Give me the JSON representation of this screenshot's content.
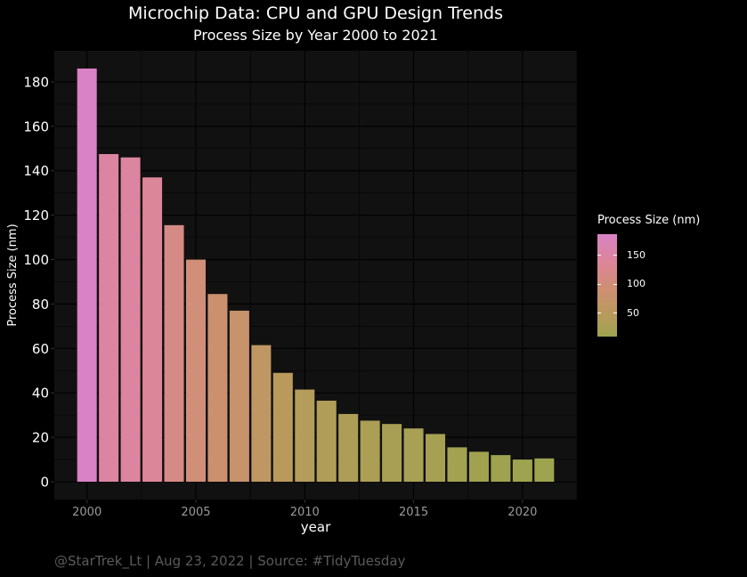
{
  "header": {
    "title": "Microchip Data: CPU and GPU Design Trends",
    "subtitle": "Process Size by Year 2000 to 2021"
  },
  "caption": "@StarTrek_Lt | Aug 23, 2022 | Source: #TidyTuesday",
  "legend": {
    "title": "Process Size (nm)",
    "ticks": [
      {
        "label": "150",
        "value": 150
      },
      {
        "label": "100",
        "value": 100
      },
      {
        "label": "50",
        "value": 50
      }
    ],
    "range": [
      10,
      186
    ],
    "placement": "right"
  },
  "colors": {
    "background": "#000000",
    "panel": "#111111",
    "gradient_low": "#9ea34f",
    "gradient_mid": "#cd9070",
    "gradient_high": "#d982c6"
  },
  "chart_data": {
    "type": "bar",
    "title": "Microchip Data: CPU and GPU Design Trends",
    "subtitle": "Process Size by Year 2000 to 2021",
    "xlabel": "year",
    "ylabel": "Process Size (nm)",
    "ylim": [
      -8,
      194
    ],
    "xlim": [
      1998.5,
      2022.5
    ],
    "yticks": [
      0,
      20,
      40,
      60,
      80,
      100,
      120,
      140,
      160,
      180
    ],
    "xticks": [
      2000,
      2005,
      2010,
      2015,
      2020
    ],
    "grid": true,
    "x": [
      2000,
      2001,
      2002,
      2003,
      2004,
      2005,
      2006,
      2007,
      2008,
      2009,
      2010,
      2011,
      2012,
      2013,
      2014,
      2015,
      2016,
      2017,
      2018,
      2019,
      2020,
      2021
    ],
    "values": [
      186,
      147.5,
      146,
      137,
      115.5,
      100,
      84.5,
      77,
      61.5,
      49,
      41.5,
      36.5,
      30.5,
      27.5,
      26,
      24,
      21.5,
      15.5,
      13.5,
      12,
      10,
      10.5
    ]
  }
}
